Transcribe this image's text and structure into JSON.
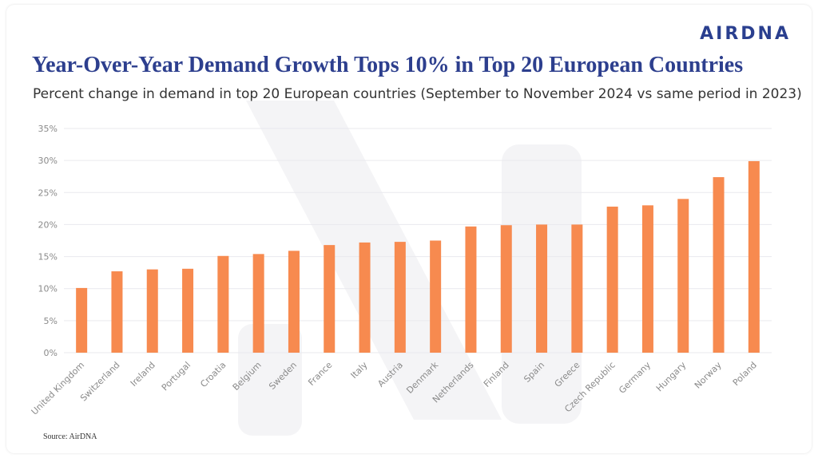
{
  "brand": "AIRDNA",
  "chart_data": {
    "type": "bar",
    "title": "Year-Over-Year Demand Growth Tops 10% in Top 20 European Countries",
    "subtitle": "Percent change in demand in top 20 European countries (September to November 2024 vs same period in 2023)",
    "categories": [
      "United Kingdom",
      "Switzerland",
      "Ireland",
      "Portugal",
      "Croatia",
      "Belgium",
      "Sweden",
      "France",
      "Italy",
      "Austria",
      "Denmark",
      "Netherlands",
      "Finland",
      "Spain",
      "Greece",
      "Czech Republic",
      "Germany",
      "Hungary",
      "Norway",
      "Poland"
    ],
    "values": [
      10.1,
      12.7,
      13.0,
      13.1,
      15.1,
      15.4,
      15.9,
      16.8,
      17.2,
      17.3,
      17.5,
      19.7,
      19.9,
      20.0,
      20.0,
      22.8,
      23.0,
      24.0,
      27.4,
      29.9
    ],
    "ylim": [
      0,
      35
    ],
    "yticks": [
      0,
      5,
      10,
      15,
      20,
      25,
      30,
      35
    ],
    "ytick_suffix": "%",
    "xlabel": "",
    "ylabel": "",
    "grid": true,
    "legend": "none",
    "bar_color": "#f78a4f",
    "grid_color": "#e9e9ee"
  },
  "source": "Source: AirDNA",
  "colors": {
    "title": "#2d3f8e",
    "brand": "#2a3f8f"
  }
}
